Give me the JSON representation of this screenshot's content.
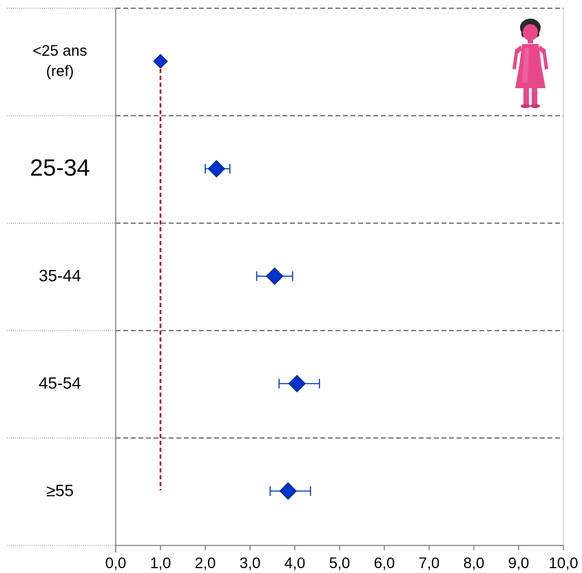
{
  "chart_data": {
    "type": "scatter",
    "orientation": "horizontal",
    "categories": [
      [
        "<25 ans",
        "(ref)"
      ],
      [
        "25-34"
      ],
      [
        "35-44"
      ],
      [
        "45-54"
      ],
      [
        "≥55"
      ]
    ],
    "values": [
      1.0,
      2.25,
      3.55,
      4.05,
      3.85
    ],
    "ci_low": [
      null,
      2.0,
      3.15,
      3.65,
      3.45
    ],
    "ci_high": [
      null,
      2.55,
      3.95,
      4.55,
      4.35
    ],
    "xlim": [
      0,
      10
    ],
    "xticks": [
      "0,0",
      "1,0",
      "2,0",
      "3,0",
      "4,0",
      "5,0",
      "6,0",
      "7,0",
      "8,0",
      "9,0",
      "10,0"
    ],
    "reference_line": 1.0,
    "grid": true,
    "legend": "none",
    "icon": "woman-icon",
    "colors": {
      "marker": "#0033cc",
      "reference_line": "#c00000",
      "grid": "#808080",
      "icon_body": "#e8488a",
      "icon_hair": "#2a2a2a"
    }
  }
}
